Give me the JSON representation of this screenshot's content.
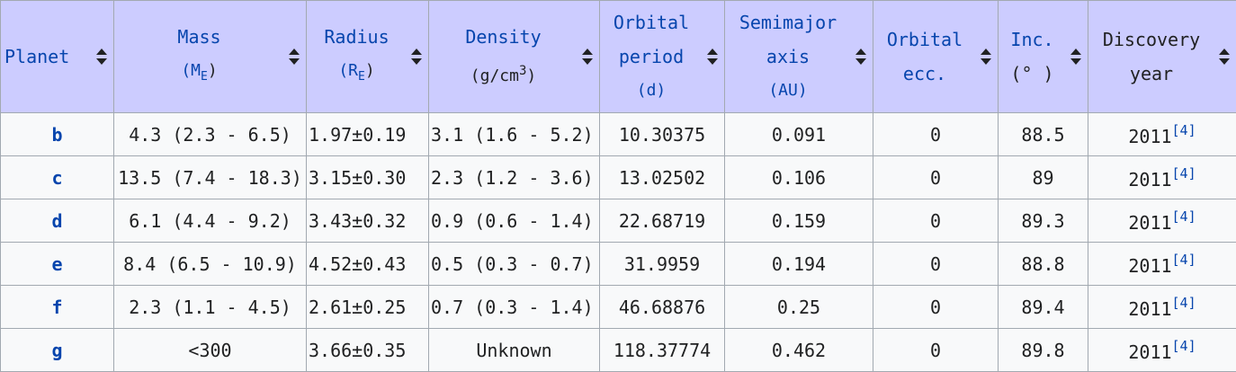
{
  "headers": [
    {
      "line1": "Planet",
      "line2": "",
      "line3": "",
      "unit": ""
    },
    {
      "line1": "Mass",
      "unit_pre": "(M",
      "unit_sub": "E",
      "unit_post": ")"
    },
    {
      "line1": "Radius",
      "unit_pre": "(R",
      "unit_sub": "E",
      "unit_post": ")"
    },
    {
      "line1": "Density",
      "unit": "(g/cm",
      "unit_sup": "3",
      "unit_post": ")"
    },
    {
      "line1": "Orbital",
      "line2": "period",
      "line3": "(d)"
    },
    {
      "line1": "Semimajor",
      "line2": "axis",
      "line3": "(AU)"
    },
    {
      "line1": "Orbital",
      "line2": "ecc."
    },
    {
      "line1": "Inc.",
      "line2": "(° )"
    },
    {
      "line1": "Discovery",
      "line2": "year"
    }
  ],
  "rows": [
    {
      "planet": "b",
      "mass": "4.3 (2.3 - 6.5)",
      "radius": "1.97±0.19",
      "density": "3.1 (1.6 - 5.2)",
      "period": "10.30375",
      "axis": "0.091",
      "ecc": "0",
      "inc": "88.5",
      "year": "2011",
      "ref": "[4]"
    },
    {
      "planet": "c",
      "mass": "13.5 (7.4 - 18.3)",
      "radius": "3.15±0.30",
      "density": "2.3 (1.2 - 3.6)",
      "period": "13.02502",
      "axis": "0.106",
      "ecc": "0",
      "inc": "89",
      "year": "2011",
      "ref": "[4]"
    },
    {
      "planet": "d",
      "mass": "6.1 (4.4 - 9.2)",
      "radius": "3.43±0.32",
      "density": "0.9 (0.6 - 1.4)",
      "period": "22.68719",
      "axis": "0.159",
      "ecc": "0",
      "inc": "89.3",
      "year": "2011",
      "ref": "[4]"
    },
    {
      "planet": "e",
      "mass": "8.4 (6.5 - 10.9)",
      "radius": "4.52±0.43",
      "density": "0.5 (0.3 - 0.7)",
      "period": "31.9959",
      "axis": "0.194",
      "ecc": "0",
      "inc": "88.8",
      "year": "2011",
      "ref": "[4]"
    },
    {
      "planet": "f",
      "mass": "2.3 (1.1 - 4.5)",
      "radius": "2.61±0.25",
      "density": "0.7 (0.3 - 1.4)",
      "period": "46.68876",
      "axis": "0.25",
      "ecc": "0",
      "inc": "89.4",
      "year": "2011",
      "ref": "[4]"
    },
    {
      "planet": "g",
      "mass": "<300",
      "radius": "3.66±0.35",
      "density": "Unknown",
      "period": "118.37774",
      "axis": "0.462",
      "ecc": "0",
      "inc": "89.8",
      "year": "2011",
      "ref": "[4]"
    }
  ],
  "colors": {
    "header_bg": "#ccccff",
    "link": "#0645ad",
    "cell_bg": "#f8f9fa",
    "border": "#a2a9b1"
  },
  "icons": {
    "sort": "sort-both-icon"
  }
}
